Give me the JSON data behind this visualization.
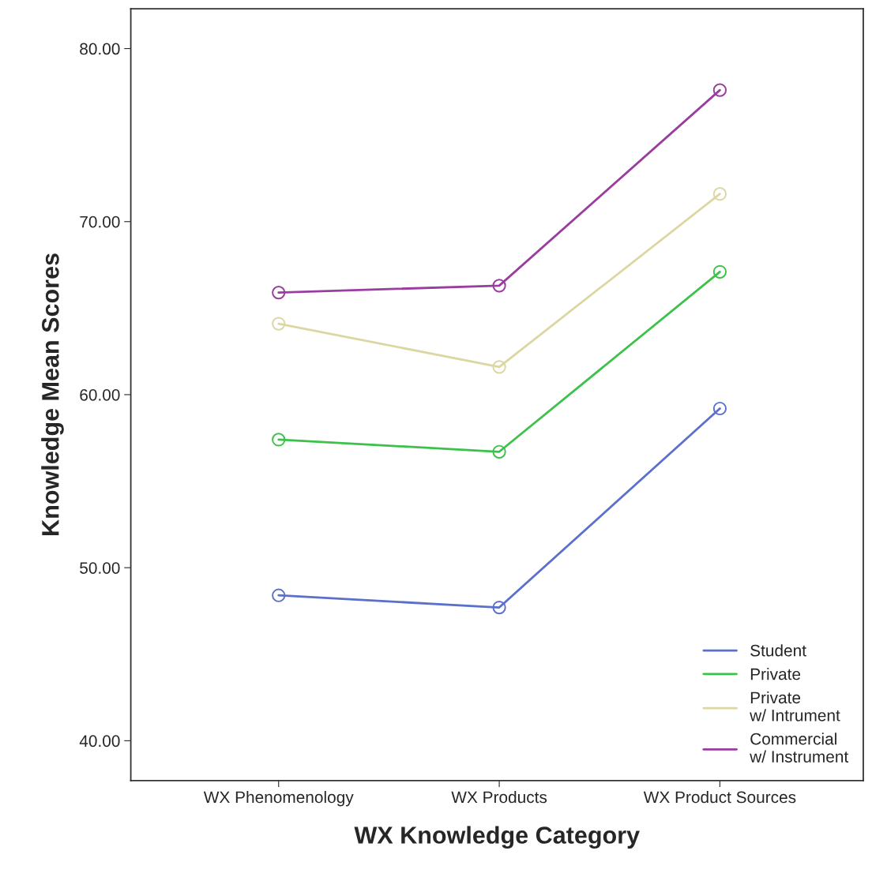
{
  "chart_data": {
    "type": "line",
    "xlabel": "WX Knowledge Category",
    "ylabel": "Knowledge Mean Scores",
    "categories": [
      "WX Phenomenology",
      "WX Products",
      "WX Product Sources"
    ],
    "series": [
      {
        "name": "Student",
        "color": "#5a70cc",
        "values": [
          48.4,
          47.7,
          59.2
        ]
      },
      {
        "name": "Private",
        "color": "#3cc24a",
        "values": [
          57.4,
          56.7,
          67.1
        ]
      },
      {
        "name": "Private\nw/ Intrument",
        "color": "#dcd7a2",
        "values": [
          64.1,
          61.6,
          71.6
        ]
      },
      {
        "name": "Commercial\nw/ Instrument",
        "color": "#9a3d9f",
        "values": [
          65.9,
          66.3,
          77.6
        ]
      }
    ],
    "ylim": [
      37.7,
      82.3
    ],
    "yticks": [
      {
        "value": 40,
        "label": "40.00"
      },
      {
        "value": 50,
        "label": "50.00"
      },
      {
        "value": 60,
        "label": "60.00"
      },
      {
        "value": 70,
        "label": "70.00"
      },
      {
        "value": 80,
        "label": "80.00"
      }
    ],
    "marker": "circle",
    "line_style": "solid",
    "grid": false,
    "legend": "bottom right"
  }
}
